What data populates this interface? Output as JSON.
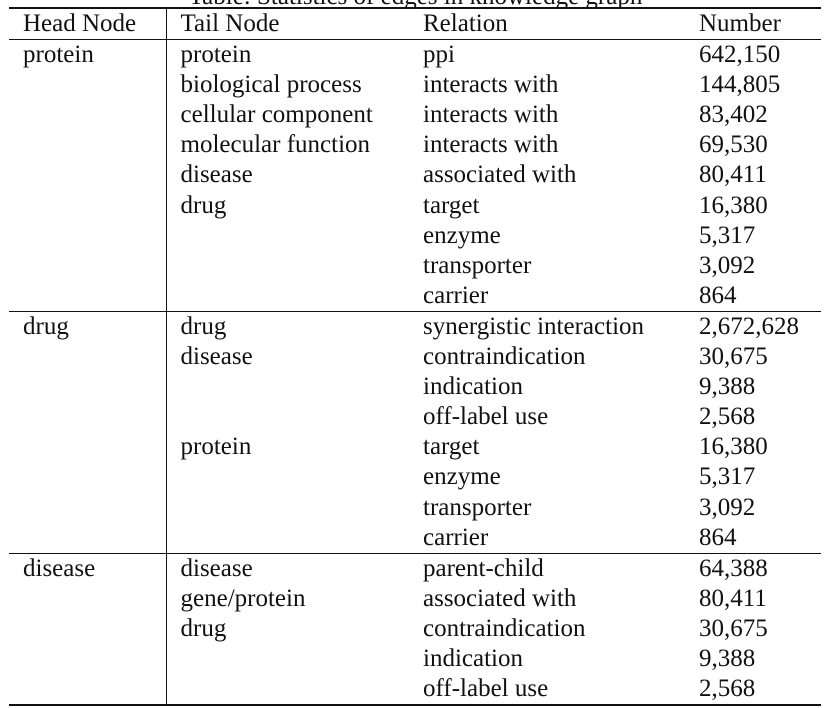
{
  "caption_fragment": "Table: Statistics of edges in knowledge graph",
  "headers": [
    "Head Node",
    "Tail Node",
    "Relation",
    "Number"
  ],
  "groups": [
    {
      "head": "protein",
      "rows": [
        {
          "tail": "protein",
          "relation": "ppi",
          "number": "642,150"
        },
        {
          "tail": "biological process",
          "relation": "interacts with",
          "number": "144,805"
        },
        {
          "tail": "cellular component",
          "relation": "interacts with",
          "number": "83,402"
        },
        {
          "tail": "molecular function",
          "relation": "interacts with",
          "number": "69,530"
        },
        {
          "tail": "disease",
          "relation": "associated with",
          "number": "80,411"
        },
        {
          "tail": "drug",
          "relation": "target",
          "number": "16,380"
        },
        {
          "tail": "",
          "relation": "enzyme",
          "number": "5,317"
        },
        {
          "tail": "",
          "relation": "transporter",
          "number": "3,092"
        },
        {
          "tail": "",
          "relation": "carrier",
          "number": "864"
        }
      ]
    },
    {
      "head": "drug",
      "rows": [
        {
          "tail": "drug",
          "relation": "synergistic interaction",
          "number": "2,672,628"
        },
        {
          "tail": "disease",
          "relation": "contraindication",
          "number": "30,675"
        },
        {
          "tail": "",
          "relation": "indication",
          "number": "9,388"
        },
        {
          "tail": "",
          "relation": "off-label use",
          "number": "2,568"
        },
        {
          "tail": "protein",
          "relation": "target",
          "number": "16,380"
        },
        {
          "tail": "",
          "relation": "enzyme",
          "number": "5,317"
        },
        {
          "tail": "",
          "relation": "transporter",
          "number": "3,092"
        },
        {
          "tail": "",
          "relation": "carrier",
          "number": "864"
        }
      ]
    },
    {
      "head": "disease",
      "rows": [
        {
          "tail": "disease",
          "relation": "parent-child",
          "number": "64,388"
        },
        {
          "tail": "gene/protein",
          "relation": "associated with",
          "number": "80,411"
        },
        {
          "tail": "drug",
          "relation": "contraindication",
          "number": "30,675"
        },
        {
          "tail": "",
          "relation": "indication",
          "number": "9,388"
        },
        {
          "tail": "",
          "relation": "off-label use",
          "number": "2,568"
        }
      ]
    }
  ]
}
